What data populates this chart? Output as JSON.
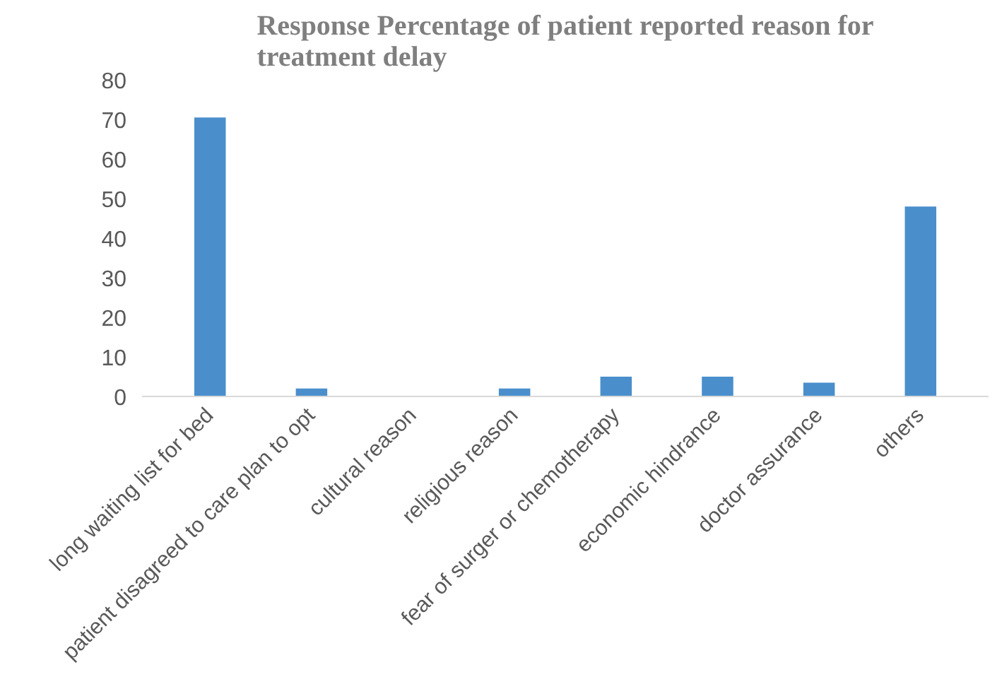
{
  "chart_data": {
    "type": "bar",
    "title": "Response Percentage of patient reported reason for treatment delay",
    "categories": [
      "long waiting list for bed",
      "patient disagreed to care plan to opt",
      "cultural reason",
      "religious reason",
      "fear of surger or chemotherapy",
      "economic hindrance",
      "doctor assurance",
      "others"
    ],
    "values": [
      70.5,
      2,
      0,
      2,
      5,
      5,
      3.5,
      48
    ],
    "color": "#4a8fcc",
    "ylim": [
      0,
      80
    ],
    "yticks": [
      0,
      10,
      20,
      30,
      40,
      50,
      60,
      70,
      80
    ],
    "grid": false
  }
}
